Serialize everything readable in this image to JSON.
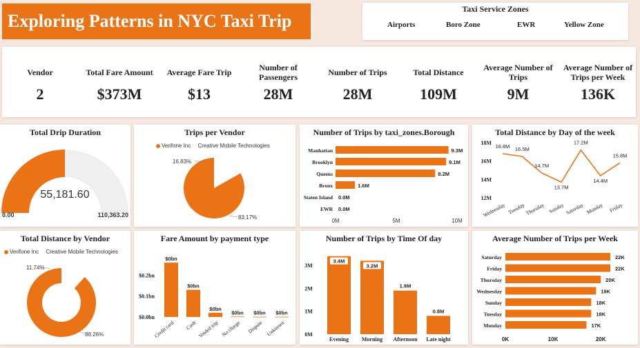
{
  "header": {
    "title": "Exploring Patterns in NYC Taxi Trip"
  },
  "zones": {
    "title": "Taxi Service Zones",
    "items": [
      "Airports",
      "Boro Zone",
      "EWR",
      "Yellow Zone"
    ]
  },
  "kpis": [
    {
      "label": "Vendor",
      "value": "2"
    },
    {
      "label": "Total Fare Amount",
      "value": "$373M"
    },
    {
      "label": "Average Fare Trip",
      "value": "$13"
    },
    {
      "label": "Number of Passengers",
      "value": "28M"
    },
    {
      "label": "Number of Trips",
      "value": "28M"
    },
    {
      "label": "Total Distance",
      "value": "109M"
    },
    {
      "label": "Average Number of Trips",
      "value": "9M"
    },
    {
      "label": "Average Number of Trips per Week",
      "value": "136K"
    }
  ],
  "gauge": {
    "title": "Total Drip Duration",
    "value_label": "55,181.60",
    "min_label": "0.00",
    "max_label": "110,363.20",
    "value": 55181.6,
    "max": 110363.2
  },
  "trips_vendor": {
    "title": "Trips per Vendor",
    "legend": [
      "Verifone Inc",
      "Creative Mobile Technologies"
    ],
    "labels": [
      "16.83%",
      "83.17%"
    ],
    "values": [
      16.83,
      83.17
    ]
  },
  "borough": {
    "title": "Number of Trips by taxi_zones.Borough",
    "categories": [
      "Manhattan",
      "Brooklyn",
      "Queens",
      "Bronx",
      "Staten Island",
      "EWR"
    ],
    "values": [
      9.3,
      9.1,
      8.2,
      1.6,
      0.0,
      0.0
    ],
    "value_labels": [
      "9.3M",
      "9.1M",
      "8.2M",
      "1.6M",
      "0.0M",
      "0.0M"
    ],
    "ticks": [
      "0M",
      "5M",
      "10M"
    ],
    "xlim": [
      0,
      10
    ]
  },
  "distance_day": {
    "title": "Total Distance by Day of the week",
    "categories": [
      "Wednesday",
      "Tuesday",
      "Thursday",
      "Sunday",
      "Saturday",
      "Monday",
      "Friday"
    ],
    "values": [
      16.8,
      16.5,
      14.7,
      13.7,
      17.2,
      14.4,
      15.8
    ],
    "value_labels": [
      "16.8M",
      "16.5M",
      "14.7M",
      "13.7M",
      "17.2M",
      "14.4M",
      "15.8M"
    ],
    "ticks": [
      "12M",
      "14M",
      "16M",
      "18M"
    ],
    "ylim": [
      12,
      18
    ]
  },
  "distance_vendor": {
    "title": "Total Distance by Vendor",
    "legend": [
      "Verifone Inc",
      "Creative Mobile Technologies"
    ],
    "labels": [
      "11.74%",
      "88.26%"
    ],
    "values": [
      11.74,
      88.26
    ]
  },
  "fare_payment": {
    "title": "Fare Amount by payment type",
    "categories": [
      "Credit card",
      "Cash",
      "Voided trip",
      "No charge",
      "Dispute",
      "Unknown"
    ],
    "values": [
      0.26,
      0.13,
      0.02,
      0.002,
      0.001,
      0.001
    ],
    "value_labels": [
      "$0bn",
      "$0bn",
      "$0bn",
      "$0bn",
      "$0bn",
      "$0bn"
    ],
    "ticks": [
      "$0.0bn",
      "$0.1bn",
      "$0.2bn"
    ],
    "ylim": [
      0,
      0.3
    ]
  },
  "time_of_day": {
    "title": "Number of Trips by Time Of day",
    "categories": [
      "Evening",
      "Morning",
      "Afternoon",
      "Late night"
    ],
    "values": [
      3.4,
      3.2,
      1.9,
      0.8
    ],
    "value_labels": [
      "3.4M",
      "3.2M",
      "1.9M",
      "0.8M"
    ],
    "ticks": [
      "0M",
      "1M",
      "2M",
      "3M"
    ],
    "ylim": [
      0,
      3.6
    ]
  },
  "avg_week": {
    "title": "Average Number of Trips per Week",
    "categories": [
      "Saturday",
      "Friday",
      "Thursday",
      "Wednesday",
      "Sunday",
      "Tuesday",
      "Monday"
    ],
    "values": [
      22,
      22,
      20,
      19,
      18,
      18,
      17
    ],
    "value_labels": [
      "22K",
      "22K",
      "20K",
      "19K",
      "18K",
      "18K",
      "17K"
    ],
    "ticks": [
      "0K",
      "10K",
      "20K"
    ],
    "xlim": [
      0,
      22
    ]
  },
  "chart_data": [
    {
      "type": "gauge",
      "title": "Total Drip Duration",
      "value": 55181.6,
      "min": 0,
      "max": 110363.2
    },
    {
      "type": "pie",
      "title": "Trips per Vendor",
      "categories": [
        "Verifone Inc",
        "Creative Mobile Technologies"
      ],
      "values": [
        16.83,
        83.17
      ]
    },
    {
      "type": "bar",
      "title": "Number of Trips by taxi_zones.Borough",
      "categories": [
        "Manhattan",
        "Brooklyn",
        "Queens",
        "Bronx",
        "Staten Island",
        "EWR"
      ],
      "values": [
        9.3,
        9.1,
        8.2,
        1.6,
        0.0,
        0.0
      ],
      "xlim": [
        0,
        10
      ]
    },
    {
      "type": "line",
      "title": "Total Distance by Day of the week",
      "categories": [
        "Wednesday",
        "Tuesday",
        "Thursday",
        "Sunday",
        "Saturday",
        "Monday",
        "Friday"
      ],
      "values": [
        16.8,
        16.5,
        14.7,
        13.7,
        17.2,
        14.4,
        15.8
      ],
      "ylim": [
        12,
        18
      ]
    },
    {
      "type": "pie",
      "title": "Total Distance by Vendor",
      "categories": [
        "Verifone Inc",
        "Creative Mobile Technologies"
      ],
      "values": [
        11.74,
        88.26
      ]
    },
    {
      "type": "bar",
      "title": "Fare Amount by payment type",
      "categories": [
        "Credit card",
        "Cash",
        "Voided trip",
        "No charge",
        "Dispute",
        "Unknown"
      ],
      "values": [
        0.26,
        0.13,
        0.02,
        0.002,
        0.001,
        0.001
      ],
      "ylim": [
        0,
        0.3
      ]
    },
    {
      "type": "bar",
      "title": "Number of Trips by Time Of day",
      "categories": [
        "Evening",
        "Morning",
        "Afternoon",
        "Late night"
      ],
      "values": [
        3.4,
        3.2,
        1.9,
        0.8
      ],
      "ylim": [
        0,
        3.6
      ]
    },
    {
      "type": "bar",
      "title": "Average Number of Trips per Week",
      "categories": [
        "Saturday",
        "Friday",
        "Thursday",
        "Wednesday",
        "Sunday",
        "Tuesday",
        "Monday"
      ],
      "values": [
        22,
        22,
        20,
        19,
        18,
        18,
        17
      ],
      "xlim": [
        0,
        22
      ]
    }
  ],
  "colors": {
    "accent": "#ea7316",
    "track": "#efefef",
    "background": "#f6e8de"
  }
}
